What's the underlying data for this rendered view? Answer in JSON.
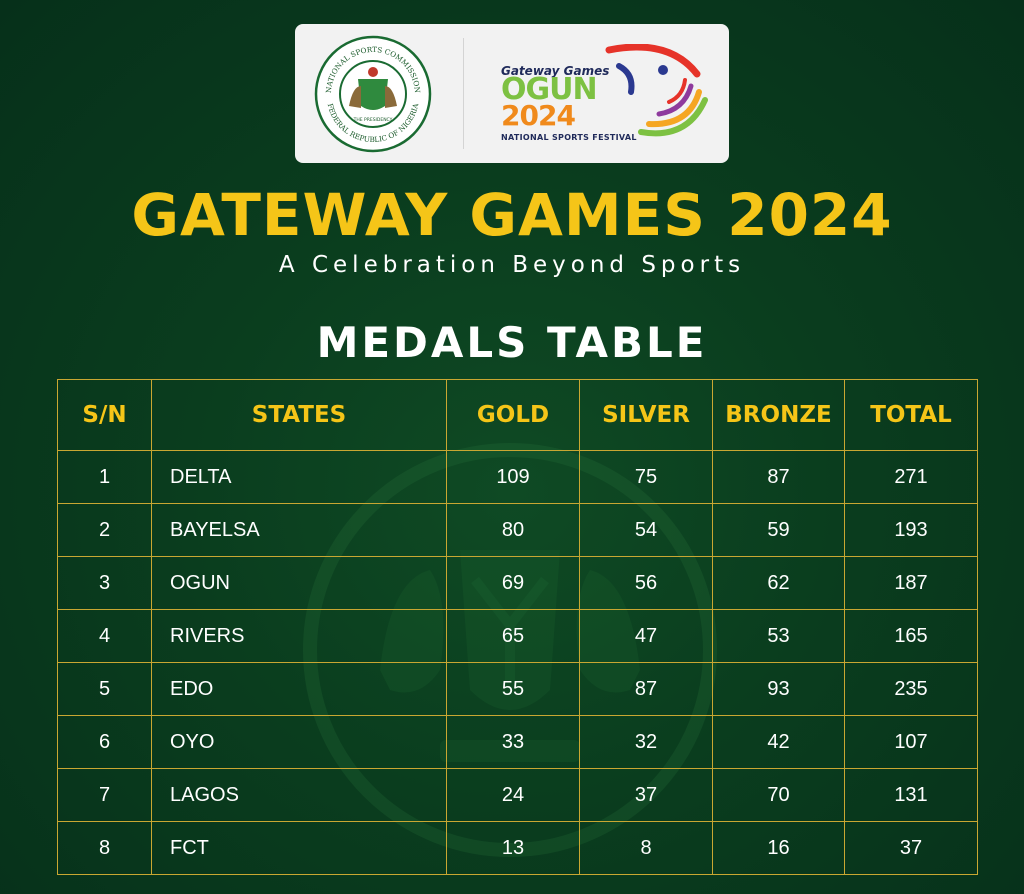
{
  "logos": {
    "nsc_seal": {
      "ring_text_top": "NATIONAL SPORTS COMMISSION",
      "ring_text_bottom": "FEDERAL REPUBLIC OF NIGERIA",
      "inner_text": "THE PRESIDENCY"
    },
    "gateway_logo": {
      "top_text": "Gateway Games",
      "name_text": "OGUN",
      "year_text": "2024",
      "sub_text": "NATIONAL SPORTS FESTIVAL"
    }
  },
  "title": "GATEWAY GAMES 2024",
  "subtitle": "A Celebration Beyond Sports",
  "heading": "MEDALS TABLE",
  "table": {
    "headers": {
      "sn": "S/N",
      "states": "STATES",
      "gold": "GOLD",
      "silver": "SILVER",
      "bronze": "BRONZE",
      "total": "TOTAL"
    },
    "rows": [
      {
        "sn": "1",
        "state": "DELTA",
        "gold": "109",
        "silver": "75",
        "bronze": "87",
        "total": "271"
      },
      {
        "sn": "2",
        "state": "BAYELSA",
        "gold": "80",
        "silver": "54",
        "bronze": "59",
        "total": "193"
      },
      {
        "sn": "3",
        "state": "OGUN",
        "gold": "69",
        "silver": "56",
        "bronze": "62",
        "total": "187"
      },
      {
        "sn": "4",
        "state": "RIVERS",
        "gold": "65",
        "silver": "47",
        "bronze": "53",
        "total": "165"
      },
      {
        "sn": "5",
        "state": "EDO",
        "gold": "55",
        "silver": "87",
        "bronze": "93",
        "total": "235"
      },
      {
        "sn": "6",
        "state": "OYO",
        "gold": "33",
        "silver": "32",
        "bronze": "42",
        "total": "107"
      },
      {
        "sn": "7",
        "state": "LAGOS",
        "gold": "24",
        "silver": "37",
        "bronze": "70",
        "total": "131"
      },
      {
        "sn": "8",
        "state": "FCT",
        "gold": "13",
        "silver": "8",
        "bronze": "16",
        "total": "37"
      }
    ]
  },
  "colors": {
    "background": "#0a3d1e",
    "title_gold": "#f5c518",
    "table_border": "#c9a732",
    "text_white": "#ffffff"
  }
}
